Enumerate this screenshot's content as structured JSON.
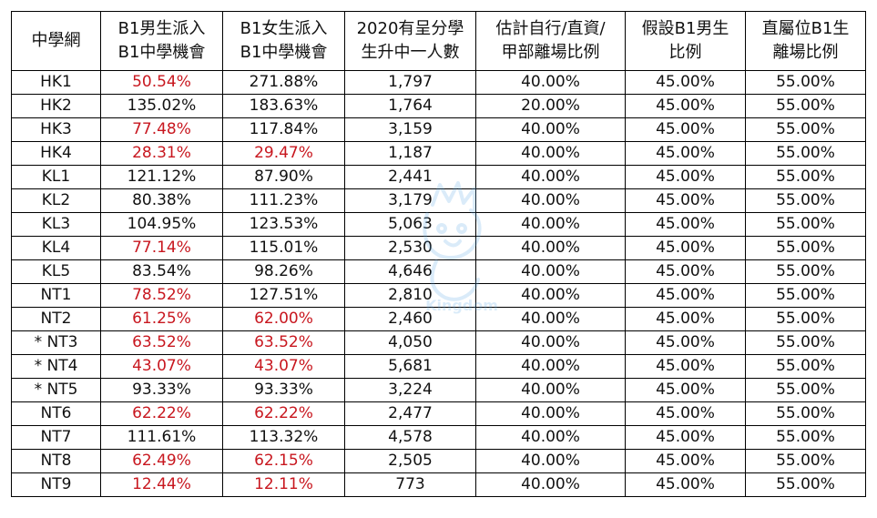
{
  "header": {
    "c0": [
      "中學網"
    ],
    "c1": [
      "B1男生派入",
      "B1中學機會"
    ],
    "c2": [
      "B1女生派入",
      "B1中學機會"
    ],
    "c3": [
      "2020有呈分學",
      "生升中一人數"
    ],
    "c4": [
      "估計自行/直資/",
      "甲部離場比例"
    ],
    "c5": [
      "假設B1男生",
      "比例"
    ],
    "c6": [
      "直屬位B1生",
      "離場比例"
    ]
  },
  "rows": [
    {
      "net": "HK1",
      "boys": "50.54%",
      "girls": "271.88%",
      "students": "1,797",
      "leave": "40.00%",
      "boys_ratio": "45.00%",
      "direct": "55.00%",
      "boys_red": true,
      "girls_red": false
    },
    {
      "net": "HK2",
      "boys": "135.02%",
      "girls": "183.63%",
      "students": "1,764",
      "leave": "20.00%",
      "boys_ratio": "45.00%",
      "direct": "55.00%",
      "boys_red": false,
      "girls_red": false
    },
    {
      "net": "HK3",
      "boys": "77.48%",
      "girls": "117.84%",
      "students": "3,159",
      "leave": "40.00%",
      "boys_ratio": "45.00%",
      "direct": "55.00%",
      "boys_red": true,
      "girls_red": false
    },
    {
      "net": "HK4",
      "boys": "28.31%",
      "girls": "29.47%",
      "students": "1,187",
      "leave": "40.00%",
      "boys_ratio": "45.00%",
      "direct": "55.00%",
      "boys_red": true,
      "girls_red": true
    },
    {
      "net": "KL1",
      "boys": "121.12%",
      "girls": "87.90%",
      "students": "2,441",
      "leave": "40.00%",
      "boys_ratio": "45.00%",
      "direct": "55.00%",
      "boys_red": false,
      "girls_red": false
    },
    {
      "net": "KL2",
      "boys": "80.38%",
      "girls": "111.23%",
      "students": "3,179",
      "leave": "40.00%",
      "boys_ratio": "45.00%",
      "direct": "55.00%",
      "boys_red": false,
      "girls_red": false
    },
    {
      "net": "KL3",
      "boys": "104.95%",
      "girls": "123.53%",
      "students": "5,063",
      "leave": "40.00%",
      "boys_ratio": "45.00%",
      "direct": "55.00%",
      "boys_red": false,
      "girls_red": false
    },
    {
      "net": "KL4",
      "boys": "77.14%",
      "girls": "115.01%",
      "students": "2,530",
      "leave": "40.00%",
      "boys_ratio": "45.00%",
      "direct": "55.00%",
      "boys_red": true,
      "girls_red": false
    },
    {
      "net": "KL5",
      "boys": "83.54%",
      "girls": "98.26%",
      "students": "4,646",
      "leave": "40.00%",
      "boys_ratio": "45.00%",
      "direct": "55.00%",
      "boys_red": false,
      "girls_red": false
    },
    {
      "net": "NT1",
      "boys": "78.52%",
      "girls": "127.51%",
      "students": "2,810",
      "leave": "40.00%",
      "boys_ratio": "45.00%",
      "direct": "55.00%",
      "boys_red": true,
      "girls_red": false
    },
    {
      "net": "NT2",
      "boys": "61.25%",
      "girls": "62.00%",
      "students": "2,460",
      "leave": "40.00%",
      "boys_ratio": "45.00%",
      "direct": "55.00%",
      "boys_red": true,
      "girls_red": true
    },
    {
      "net": "* NT3",
      "boys": "63.52%",
      "girls": "63.52%",
      "students": "4,050",
      "leave": "40.00%",
      "boys_ratio": "45.00%",
      "direct": "55.00%",
      "boys_red": true,
      "girls_red": true
    },
    {
      "net": "* NT4",
      "boys": "43.07%",
      "girls": "43.07%",
      "students": "5,681",
      "leave": "40.00%",
      "boys_ratio": "45.00%",
      "direct": "55.00%",
      "boys_red": true,
      "girls_red": true
    },
    {
      "net": "* NT5",
      "boys": "93.33%",
      "girls": "93.33%",
      "students": "3,224",
      "leave": "40.00%",
      "boys_ratio": "45.00%",
      "direct": "55.00%",
      "boys_red": false,
      "girls_red": false
    },
    {
      "net": "NT6",
      "boys": "62.22%",
      "girls": "62.22%",
      "students": "2,477",
      "leave": "40.00%",
      "boys_ratio": "45.00%",
      "direct": "55.00%",
      "boys_red": true,
      "girls_red": true
    },
    {
      "net": "NT7",
      "boys": "111.61%",
      "girls": "113.32%",
      "students": "4,578",
      "leave": "40.00%",
      "boys_ratio": "45.00%",
      "direct": "55.00%",
      "boys_red": false,
      "girls_red": false
    },
    {
      "net": "NT8",
      "boys": "62.49%",
      "girls": "62.15%",
      "students": "2,505",
      "leave": "40.00%",
      "boys_ratio": "45.00%",
      "direct": "55.00%",
      "boys_red": true,
      "girls_red": true
    },
    {
      "net": "NT9",
      "boys": "12.44%",
      "girls": "12.11%",
      "students": "773",
      "leave": "40.00%",
      "boys_ratio": "45.00%",
      "direct": "55.00%",
      "boys_red": true,
      "girls_red": true
    }
  ],
  "colors": {
    "highlight": "#c8171f",
    "text": "#111111",
    "border": "#000000",
    "watermark": "#5aa9e6"
  },
  "watermark": {
    "icon": "mascot-watermark-icon",
    "lettering": "Kingdom"
  }
}
